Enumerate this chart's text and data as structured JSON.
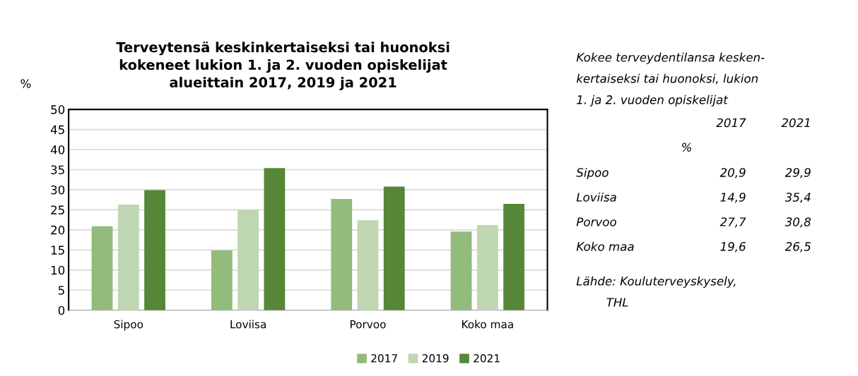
{
  "chart_data": [
    {
      "type": "bar",
      "title": "Terveytensä keskinkertaiseksi tai huonoksi\nkokeneet lukion 1. ja 2. vuoden opiskelijat\nalueittain 2017, 2019 ja 2021",
      "ylabel": "%",
      "categories": [
        "Sipoo",
        "Loviisa",
        "Porvoo",
        "Koko maa"
      ],
      "series": [
        {
          "name": "2017",
          "color": "#93bb7b",
          "values": [
            20.9,
            14.9,
            27.7,
            19.6
          ]
        },
        {
          "name": "2019",
          "color": "#bfd6b3",
          "values": [
            26.3,
            25.0,
            22.4,
            21.2
          ]
        },
        {
          "name": "2021",
          "color": "#568637",
          "values": [
            29.9,
            35.4,
            30.8,
            26.5
          ]
        }
      ],
      "ylim": [
        0,
        50
      ],
      "yticks": [
        0,
        5,
        10,
        15,
        20,
        25,
        30,
        35,
        40,
        45,
        50
      ],
      "grid": "y",
      "legend": "bottom"
    },
    {
      "type": "other",
      "title": "Kokee terveydentilansa kesken-\nkertaiseksi tai huonoksi, lukion\n1. ja 2. vuoden opiskelijat",
      "ylabel": "%",
      "categories": [
        "2017",
        "2021"
      ],
      "y_categories": [
        "Sipoo",
        "Loviisa",
        "Porvoo",
        "Koko maa"
      ],
      "cell_labels": [
        [
          "20,9",
          "29,9"
        ],
        [
          "14,9",
          "35,4"
        ],
        [
          "27,7",
          "30,8"
        ],
        [
          "19,6",
          "26,5"
        ]
      ],
      "annotations": [
        "Lähde: Kouluterveyskysely,\n        THL"
      ]
    }
  ]
}
